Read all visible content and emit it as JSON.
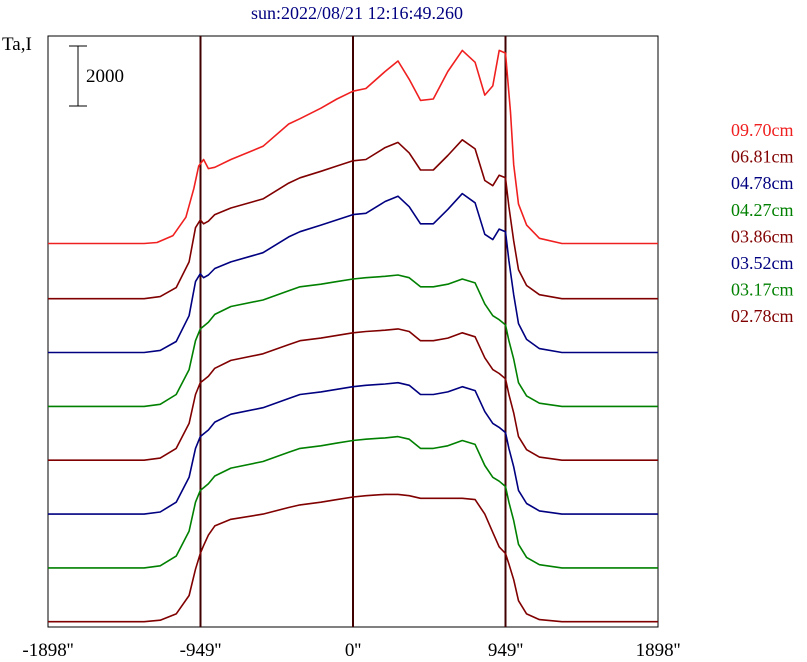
{
  "chart_data": {
    "type": "line",
    "title": "sun:2022/08/21 12:16:49.260",
    "ylabel": "Ta,I",
    "scale_bar_label": "2000",
    "x_ticks": [
      "-1898''",
      "-949''",
      "0''",
      "949''",
      "1898''"
    ],
    "x_tick_values": [
      -1898,
      -949,
      0,
      949,
      1898
    ],
    "xlim": [
      -1898,
      1898
    ],
    "vertical_markers": [
      -949,
      0,
      949
    ],
    "legend_position": "right",
    "series": [
      {
        "name": "09.70cm",
        "color": "#f02020",
        "offset": 14600,
        "profile": "high"
      },
      {
        "name": "06.81cm",
        "color": "#800000",
        "offset": 12500,
        "profile": "mid"
      },
      {
        "name": "04.78cm",
        "color": "#000080",
        "offset": 10450,
        "profile": "mid"
      },
      {
        "name": "04.27cm",
        "color": "#008000",
        "offset": 8400,
        "profile": "low"
      },
      {
        "name": "03.86cm",
        "color": "#800000",
        "offset": 6350,
        "profile": "low"
      },
      {
        "name": "03.52cm",
        "color": "#000080",
        "offset": 4300,
        "profile": "low"
      },
      {
        "name": "03.17cm",
        "color": "#008000",
        "offset": 2250,
        "profile": "low"
      },
      {
        "name": "02.78cm",
        "color": "#800000",
        "offset": 200,
        "profile": "flat"
      }
    ],
    "profiles": {
      "high": {
        "x": [
          -1898,
          -1300,
          -1220,
          -1120,
          -1040,
          -990,
          -960,
          -930,
          -900,
          -860,
          -760,
          -560,
          -400,
          -330,
          -200,
          -100,
          0,
          80,
          200,
          280,
          350,
          420,
          500,
          590,
          680,
          760,
          820,
          870,
          910,
          949,
          980,
          1000,
          1030,
          1080,
          1160,
          1300,
          1898
        ],
        "y": [
          0,
          0,
          40,
          300,
          1000,
          2100,
          2950,
          3200,
          2850,
          2900,
          3200,
          3700,
          4550,
          4750,
          5150,
          5500,
          5800,
          5900,
          6550,
          6950,
          6250,
          5450,
          5500,
          6550,
          7350,
          6900,
          5650,
          6000,
          7350,
          7250,
          5000,
          3000,
          1500,
          700,
          200,
          0,
          0
        ]
      },
      "mid": {
        "x": [
          -1898,
          -1300,
          -1200,
          -1100,
          -1020,
          -980,
          -950,
          -930,
          -900,
          -860,
          -760,
          -560,
          -400,
          -330,
          -200,
          -100,
          0,
          80,
          200,
          280,
          350,
          420,
          500,
          590,
          680,
          760,
          820,
          870,
          910,
          949,
          970,
          1000,
          1030,
          1080,
          1160,
          1300,
          1898
        ],
        "y": [
          0,
          0,
          80,
          420,
          1400,
          2700,
          3000,
          2850,
          2950,
          3200,
          3450,
          3800,
          4400,
          4600,
          4850,
          5050,
          5250,
          5300,
          5750,
          5950,
          5550,
          4900,
          4900,
          5450,
          6050,
          5700,
          4500,
          4300,
          4700,
          4600,
          3500,
          2200,
          1100,
          500,
          150,
          0,
          0
        ]
      },
      "low": {
        "x": [
          -1898,
          -1300,
          -1200,
          -1100,
          -1020,
          -980,
          -950,
          -930,
          -900,
          -860,
          -760,
          -560,
          -400,
          -330,
          -200,
          -100,
          0,
          80,
          200,
          280,
          350,
          420,
          500,
          590,
          680,
          760,
          820,
          870,
          910,
          949,
          970,
          1000,
          1030,
          1080,
          1160,
          1300,
          1898
        ],
        "y": [
          0,
          0,
          80,
          450,
          1400,
          2500,
          2950,
          3050,
          3200,
          3500,
          3800,
          4050,
          4400,
          4550,
          4650,
          4750,
          4850,
          4900,
          4950,
          5000,
          4900,
          4550,
          4550,
          4650,
          4850,
          4700,
          3900,
          3450,
          3300,
          3100,
          2500,
          1800,
          900,
          400,
          120,
          0,
          0
        ]
      },
      "flat": {
        "x": [
          -1898,
          -1300,
          -1200,
          -1100,
          -1020,
          -980,
          -950,
          -930,
          -900,
          -860,
          -760,
          -560,
          -400,
          -330,
          -200,
          -100,
          0,
          80,
          200,
          280,
          350,
          420,
          500,
          590,
          680,
          760,
          820,
          870,
          910,
          949,
          970,
          1000,
          1030,
          1080,
          1160,
          1300,
          1898
        ],
        "y": [
          0,
          0,
          60,
          300,
          1000,
          2000,
          2600,
          2900,
          3300,
          3650,
          3900,
          4100,
          4350,
          4450,
          4550,
          4650,
          4750,
          4800,
          4850,
          4850,
          4800,
          4700,
          4700,
          4700,
          4700,
          4650,
          4100,
          3400,
          2850,
          2600,
          2200,
          1600,
          800,
          300,
          80,
          0,
          0
        ]
      }
    },
    "ylim": [
      0,
      22500
    ]
  }
}
